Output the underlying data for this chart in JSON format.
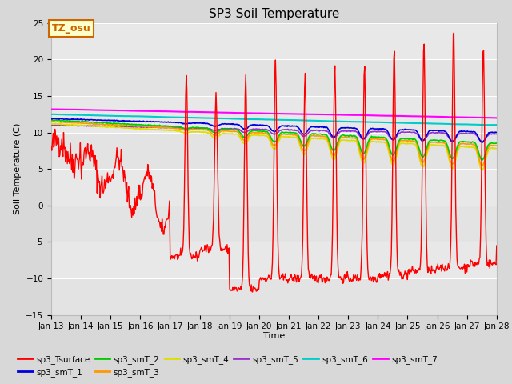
{
  "title": "SP3 Soil Temperature",
  "ylabel": "Soil Temperature (C)",
  "xlabel": "Time",
  "ylim": [
    -15,
    25
  ],
  "yticks": [
    -15,
    -10,
    -5,
    0,
    5,
    10,
    15,
    20,
    25
  ],
  "xtick_labels": [
    "Jan 13",
    "Jan 14",
    "Jan 15",
    "Jan 16",
    "Jan 17",
    "Jan 18",
    "Jan 19",
    "Jan 20",
    "Jan 21",
    "Jan 22",
    "Jan 23",
    "Jan 24",
    "Jan 25",
    "Jan 26",
    "Jan 27",
    "Jan 28"
  ],
  "fig_bg_color": "#d8d8d8",
  "plot_bg_color": "#e8e8e8",
  "grid_color": "#ffffff",
  "legend_entries": [
    "sp3_Tsurface",
    "sp3_smT_1",
    "sp3_smT_2",
    "sp3_smT_3",
    "sp3_smT_4",
    "sp3_smT_5",
    "sp3_smT_6",
    "sp3_smT_7"
  ],
  "colors": {
    "sp3_Tsurface": "#ff0000",
    "sp3_smT_1": "#0000dd",
    "sp3_smT_2": "#00cc00",
    "sp3_smT_3": "#ff9900",
    "sp3_smT_4": "#dddd00",
    "sp3_smT_5": "#9933cc",
    "sp3_smT_6": "#00cccc",
    "sp3_smT_7": "#ff00ff"
  },
  "annotation_text": "TZ_osu",
  "annotation_color": "#cc6600",
  "annotation_bg": "#ffffcc"
}
